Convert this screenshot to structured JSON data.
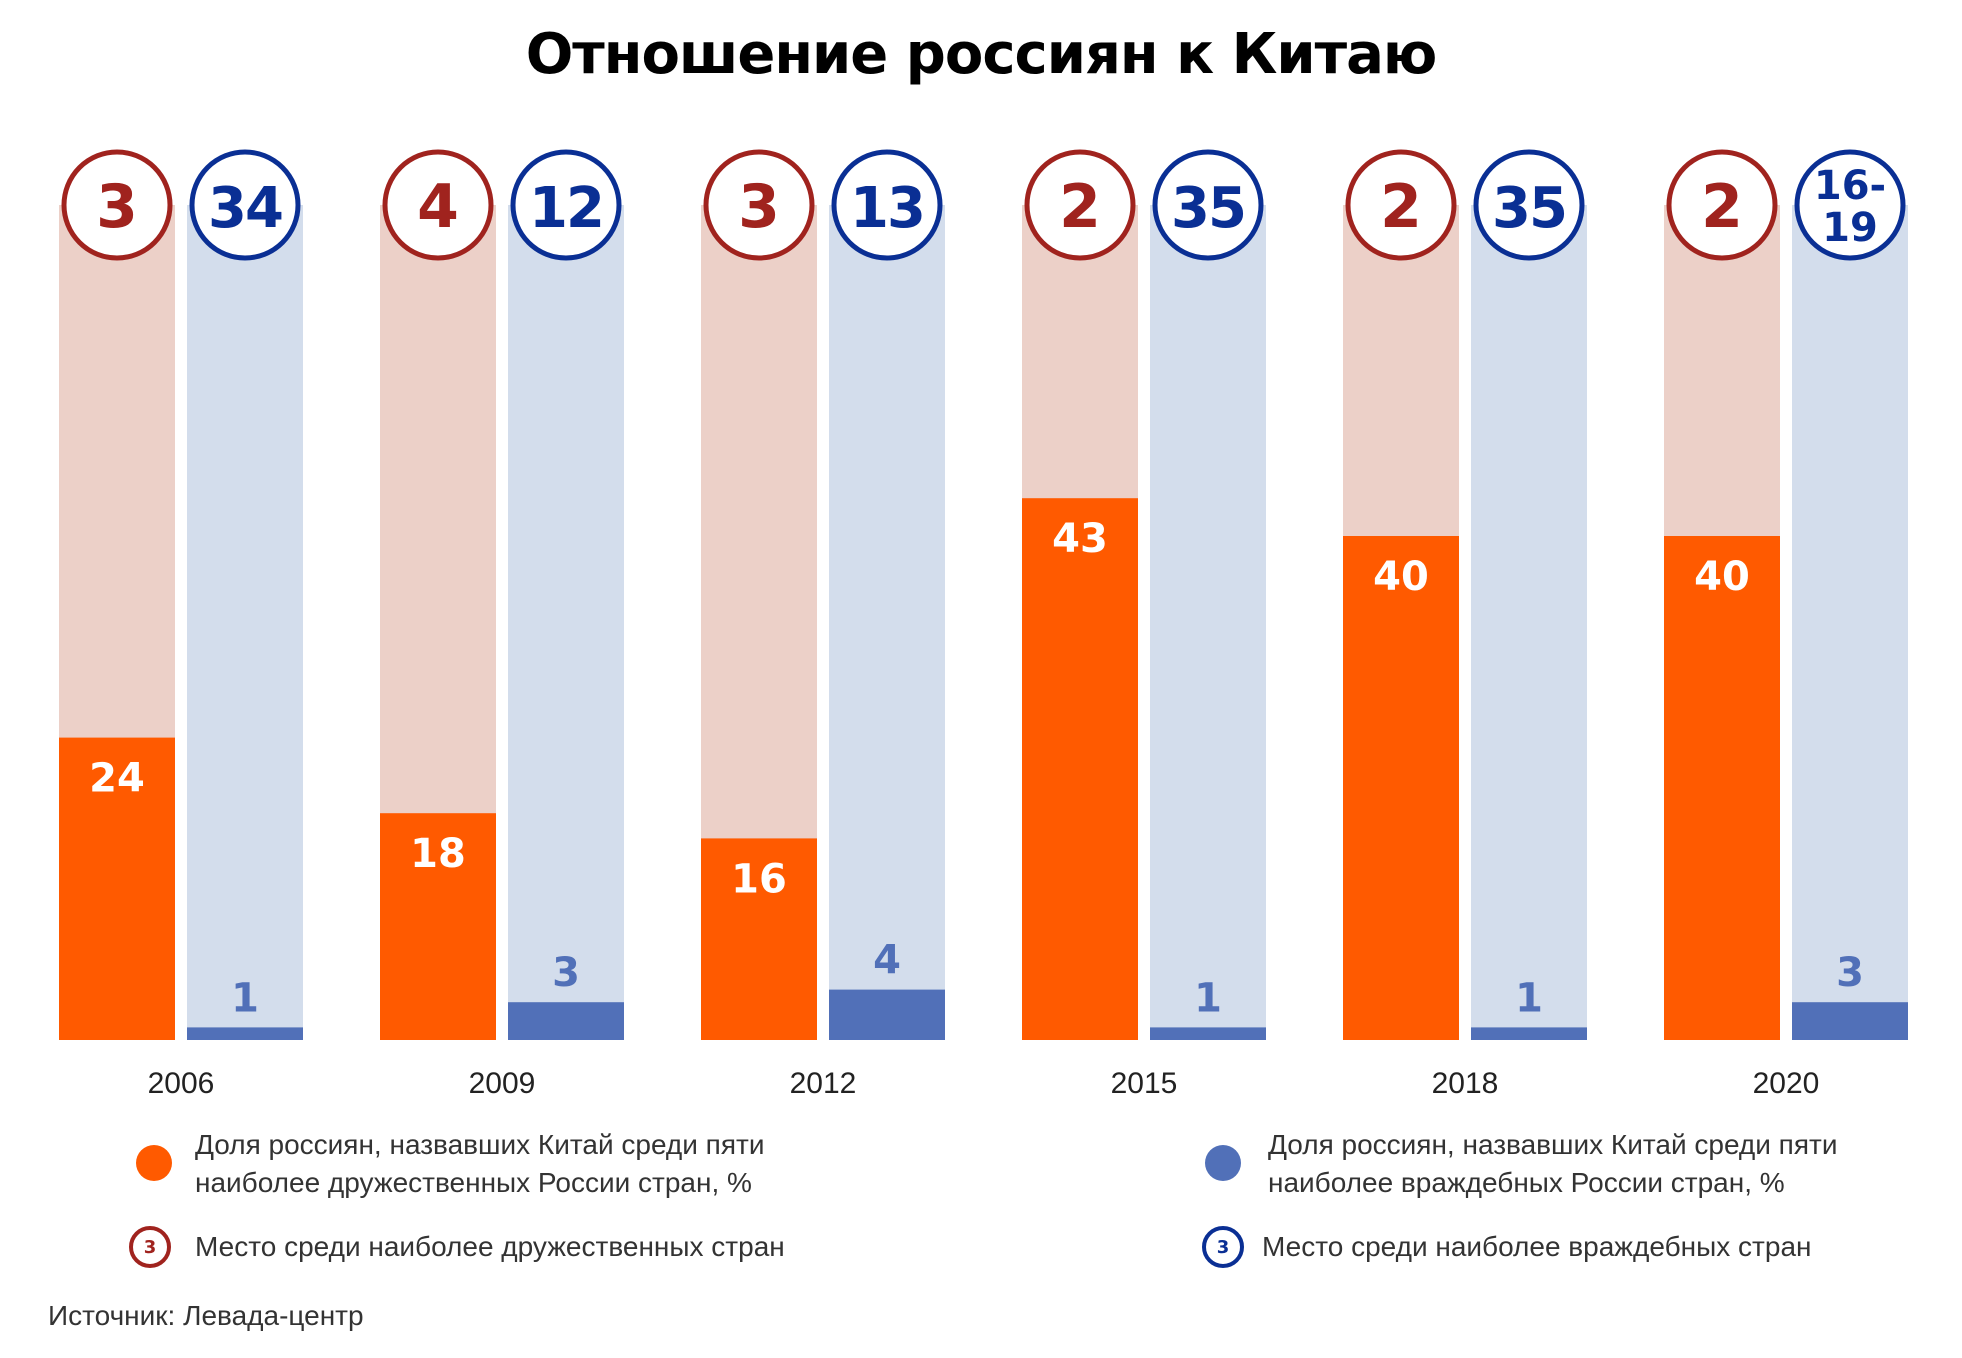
{
  "title": "Отношение россиян к Китаю",
  "colors": {
    "friendly_bar": "#ff5a00",
    "friendly_bg": "#ecd0c8",
    "friendly_ring": "#a0231e",
    "hostile_bar": "#5170b8",
    "hostile_bg": "#d3ddec",
    "hostile_ring": "#0a2f94"
  },
  "chart_data": {
    "type": "bar",
    "categories": [
      "2006",
      "2009",
      "2012",
      "2015",
      "2018",
      "2020"
    ],
    "series": [
      {
        "name": "Доля россиян, назвавших Китай среди пяти наиболее дружественных России стран, %",
        "values": [
          24,
          18,
          16,
          43,
          40,
          40
        ]
      },
      {
        "name": "Доля россиян, назвавших Китай среди пяти наиболее враждебных России стран, %",
        "values": [
          1,
          3,
          4,
          1,
          1,
          3
        ]
      }
    ],
    "friendly_rank": [
      "3",
      "4",
      "3",
      "2",
      "2",
      "2"
    ],
    "hostile_rank": [
      "34",
      "12",
      "13",
      "35",
      "35",
      "16-19"
    ]
  },
  "legend": {
    "friendly_share": "Доля россиян, назвавших Китай среди пяти наиболее дружественных России стран, %",
    "hostile_share": "Доля россиян, назвавших Китай среди пяти наиболее враждебных России стран, %",
    "friendly_rank": "Место среди наиболее дружественных стран",
    "hostile_rank": "Место среди наиболее враждебных стран",
    "rank_example": "3"
  },
  "source": "Источник: Левада-центр"
}
